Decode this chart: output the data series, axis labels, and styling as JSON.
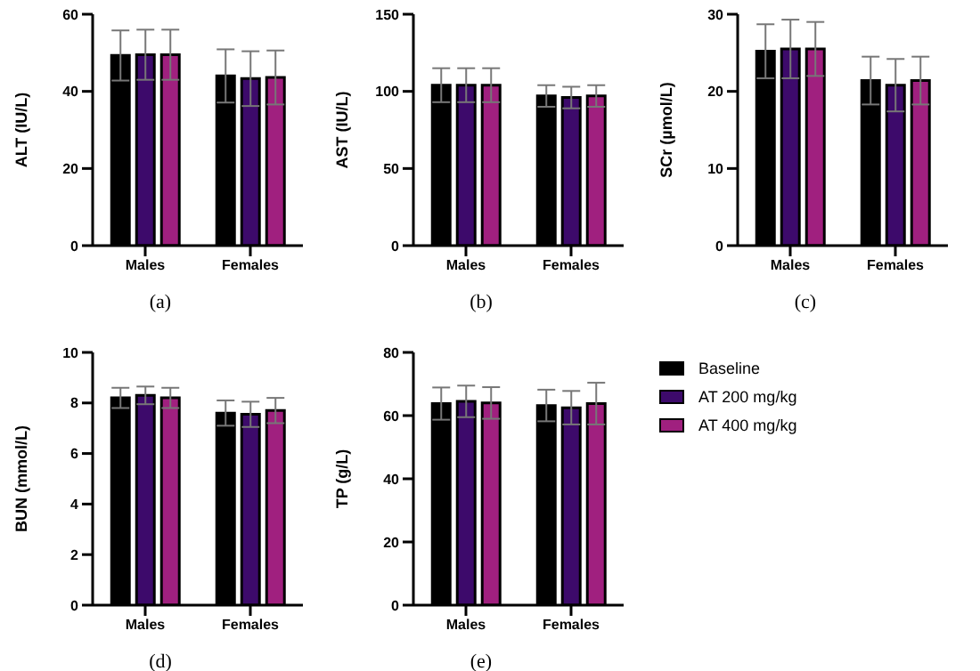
{
  "chart_data": [
    {
      "type": "bar",
      "ylabel": "ALT (IU/L)",
      "categories": [
        "Males",
        "Females"
      ],
      "ylim": [
        0,
        60
      ],
      "yticks": [
        0,
        20,
        40,
        60
      ],
      "annotations": [
        "(a)"
      ],
      "series": [
        {
          "color": "#000000",
          "values": [
            49.3,
            44.0
          ],
          "errors": [
            6.5,
            6.9
          ]
        },
        {
          "color": "#3d0a6b",
          "values": [
            49.5,
            43.3
          ],
          "errors": [
            6.5,
            7.1
          ]
        },
        {
          "color": "#a0207f",
          "values": [
            49.5,
            43.6
          ],
          "errors": [
            6.5,
            7.0
          ]
        }
      ]
    },
    {
      "type": "bar",
      "ylabel": "AST (IU/L)",
      "categories": [
        "Males",
        "Females"
      ],
      "ylim": [
        0,
        150
      ],
      "yticks": [
        0,
        50,
        100,
        150
      ],
      "annotations": [
        "(b)"
      ],
      "series": [
        {
          "color": "#000000",
          "values": [
            104,
            97
          ],
          "errors": [
            11,
            7
          ]
        },
        {
          "color": "#3d0a6b",
          "values": [
            104,
            96
          ],
          "errors": [
            11,
            7
          ]
        },
        {
          "color": "#a0207f",
          "values": [
            104,
            97
          ],
          "errors": [
            11,
            7
          ]
        }
      ]
    },
    {
      "type": "bar",
      "ylabel": "SCr (µmol/L)",
      "categories": [
        "Males",
        "Females"
      ],
      "ylim": [
        0,
        30
      ],
      "yticks": [
        0,
        10,
        20,
        30
      ],
      "annotations": [
        "(c)"
      ],
      "series": [
        {
          "color": "#000000",
          "values": [
            25.2,
            21.4
          ],
          "errors": [
            3.5,
            3.1
          ]
        },
        {
          "color": "#3d0a6b",
          "values": [
            25.5,
            20.8
          ],
          "errors": [
            3.8,
            3.4
          ]
        },
        {
          "color": "#a0207f",
          "values": [
            25.5,
            21.4
          ],
          "errors": [
            3.5,
            3.1
          ]
        }
      ]
    },
    {
      "type": "bar",
      "ylabel": "BUN (mmol/L)",
      "categories": [
        "Males",
        "Females"
      ],
      "ylim": [
        0,
        10
      ],
      "yticks": [
        0,
        2,
        4,
        6,
        8,
        10
      ],
      "annotations": [
        "(d)"
      ],
      "series": [
        {
          "color": "#000000",
          "values": [
            8.2,
            7.6
          ],
          "errors": [
            0.4,
            0.5
          ]
        },
        {
          "color": "#3d0a6b",
          "values": [
            8.3,
            7.55
          ],
          "errors": [
            0.35,
            0.5
          ]
        },
        {
          "color": "#a0207f",
          "values": [
            8.2,
            7.7
          ],
          "errors": [
            0.4,
            0.5
          ]
        }
      ]
    },
    {
      "type": "bar",
      "ylabel": "TP (g/L)",
      "categories": [
        "Males",
        "Females"
      ],
      "ylim": [
        0,
        80
      ],
      "yticks": [
        0,
        20,
        40,
        60,
        80
      ],
      "legend": "right",
      "annotations": [
        "(e)"
      ],
      "series": [
        {
          "name": "Baseline",
          "color": "#000000",
          "values": [
            63.8,
            63.2
          ],
          "errors": [
            5.1,
            5.0
          ]
        },
        {
          "name": "AT 200 mg/kg",
          "color": "#3d0a6b",
          "values": [
            64.5,
            62.5
          ],
          "errors": [
            5.0,
            5.3
          ]
        },
        {
          "name": "AT 400 mg/kg",
          "color": "#a0207f",
          "values": [
            64.0,
            63.8
          ],
          "errors": [
            5.0,
            6.6
          ]
        }
      ]
    }
  ]
}
